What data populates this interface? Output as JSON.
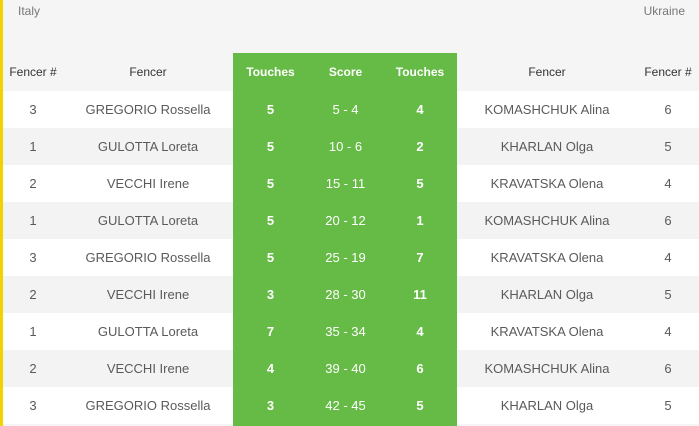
{
  "teams": {
    "left": "Italy",
    "right": "Ukraine"
  },
  "columns": {
    "fencer_num_left": "Fencer #",
    "fencer_left": "Fencer",
    "touches_left": "Touches",
    "score": "Score",
    "touches_right": "Touches",
    "fencer_right": "Fencer",
    "fencer_num_right": "Fencer #"
  },
  "bouts": [
    {
      "left_num": "3",
      "left_name": "GREGORIO Rossella",
      "left_touches": "5",
      "score": "5 - 4",
      "right_touches": "4",
      "right_name": "KOMASHCHUK Alina",
      "right_num": "6"
    },
    {
      "left_num": "1",
      "left_name": "GULOTTA Loreta",
      "left_touches": "5",
      "score": "10 - 6",
      "right_touches": "2",
      "right_name": "KHARLAN Olga",
      "right_num": "5"
    },
    {
      "left_num": "2",
      "left_name": "VECCHI Irene",
      "left_touches": "5",
      "score": "15 - 11",
      "right_touches": "5",
      "right_name": "KRAVATSKA Olena",
      "right_num": "4"
    },
    {
      "left_num": "1",
      "left_name": "GULOTTA Loreta",
      "left_touches": "5",
      "score": "20 - 12",
      "right_touches": "1",
      "right_name": "KOMASHCHUK Alina",
      "right_num": "6"
    },
    {
      "left_num": "3",
      "left_name": "GREGORIO Rossella",
      "left_touches": "5",
      "score": "25 - 19",
      "right_touches": "7",
      "right_name": "KRAVATSKA Olena",
      "right_num": "4"
    },
    {
      "left_num": "2",
      "left_name": "VECCHI Irene",
      "left_touches": "3",
      "score": "28 - 30",
      "right_touches": "11",
      "right_name": "KHARLAN Olga",
      "right_num": "5"
    },
    {
      "left_num": "1",
      "left_name": "GULOTTA Loreta",
      "left_touches": "7",
      "score": "35 - 34",
      "right_touches": "4",
      "right_name": "KRAVATSKA Olena",
      "right_num": "4"
    },
    {
      "left_num": "2",
      "left_name": "VECCHI Irene",
      "left_touches": "4",
      "score": "39 - 40",
      "right_touches": "6",
      "right_name": "KOMASHCHUK Alina",
      "right_num": "6"
    },
    {
      "left_num": "3",
      "left_name": "GREGORIO Rossella",
      "left_touches": "3",
      "score": "42 - 45",
      "right_touches": "5",
      "right_name": "KHARLAN Olga",
      "right_num": "5"
    }
  ],
  "colors": {
    "accent_bar": "#f2d200",
    "score_block": "#66bb46"
  }
}
